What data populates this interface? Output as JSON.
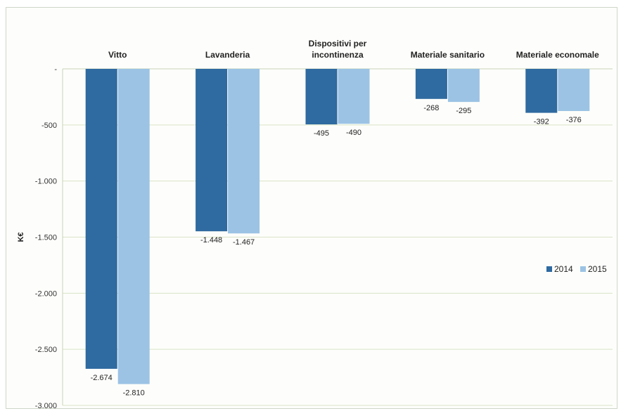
{
  "colors": {
    "series_2014": "#2f6aa0",
    "series_2015": "#9cc3e4"
  },
  "chart_data": {
    "type": "bar",
    "categories": [
      [
        "Vitto"
      ],
      [
        "Lavanderia"
      ],
      [
        "Dispositivi per",
        "incontinenza"
      ],
      [
        "Materiale sanitario"
      ],
      [
        "Materiale economale"
      ]
    ],
    "series": [
      {
        "name": "2014",
        "values": [
          -2674,
          -1448,
          -495,
          -268,
          -392
        ],
        "labels": [
          "-2.674",
          "-1.448",
          "-495",
          "-268",
          "-392"
        ]
      },
      {
        "name": "2015",
        "values": [
          -2810,
          -1467,
          -490,
          -295,
          -376
        ],
        "labels": [
          "-2.810",
          "-1.467",
          "-490",
          "-295",
          "-376"
        ]
      }
    ],
    "ylim": [
      -3000,
      0
    ],
    "yticks": [
      0,
      -500,
      -1000,
      -1500,
      -2000,
      -2500,
      -3000
    ],
    "ytick_labels": [
      "-",
      "-500",
      "-1.000",
      "-1.500",
      "-2.000",
      "-2.500",
      "-3.000"
    ],
    "ylabel": "K€",
    "xlabel": "",
    "title": "",
    "grid": true,
    "legend_position": "right"
  }
}
